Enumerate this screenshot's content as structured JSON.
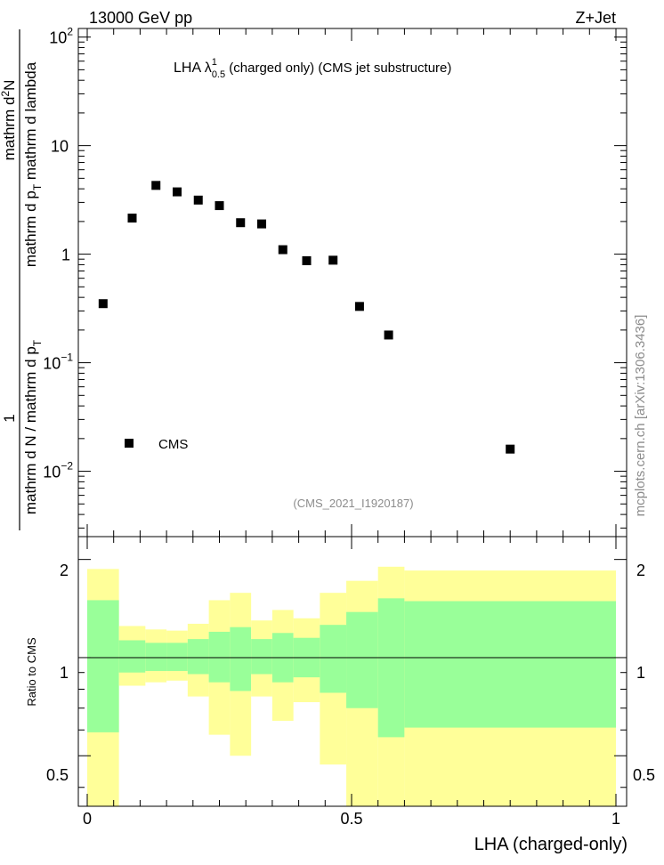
{
  "header": {
    "energy_label": "13000 GeV pp",
    "process_label": "Z+Jet"
  },
  "main_plot": {
    "title_prefix": "LHA λ",
    "title_sup": "1",
    "title_sub": "0.5",
    "title_suffix": " (charged only) (CMS jet substructure)",
    "analysis_id": "(CMS_2021_I1920187)",
    "watermark": "mcplots.cern.ch [arXiv:1306.3436]",
    "y_axis": {
      "numerator": "1",
      "denominator": "mathrm d N / mathrm d p",
      "denominator_sub": "T",
      "outer_numerator": "mathrm d",
      "outer_numerator_sup": "2",
      "outer_numerator_mid": "N",
      "outer_denominator": "mathrm d p",
      "outer_denominator_sub": "T",
      "outer_denominator_end": " mathrm d lambda"
    },
    "y_ticks": [
      {
        "value": 0.01,
        "base": "10",
        "exp": "−2"
      },
      {
        "value": 0.1,
        "base": "10",
        "exp": "−1"
      },
      {
        "value": 1,
        "base": "1",
        "exp": ""
      },
      {
        "value": 10,
        "base": "10",
        "exp": ""
      },
      {
        "value": 100,
        "base": "10",
        "exp": "2"
      }
    ]
  },
  "legend": {
    "entries": [
      {
        "label": "CMS",
        "marker": "square",
        "color": "#000000"
      }
    ]
  },
  "ratio_plot": {
    "ylabel": "Ratio to CMS",
    "y_ticks": [
      "0.5",
      "1",
      "2"
    ],
    "x_ticks": [
      "0",
      "0.5",
      "1"
    ],
    "xlabel": "LHA (charged-only)"
  },
  "colors": {
    "stat_band": "#99ff99",
    "syst_band": "#ffff99",
    "marker": "#000000",
    "watermark": "#8c8c8c"
  },
  "chart_data": {
    "type": "scatter",
    "log_y": true,
    "ylim": [
      0.0025,
      120
    ],
    "xlim": [
      -0.01,
      1.02
    ],
    "series": [
      {
        "name": "CMS",
        "points": [
          {
            "x": 0.03,
            "y": 0.35
          },
          {
            "x": 0.085,
            "y": 2.15
          },
          {
            "x": 0.13,
            "y": 4.3
          },
          {
            "x": 0.17,
            "y": 3.75
          },
          {
            "x": 0.21,
            "y": 3.15
          },
          {
            "x": 0.25,
            "y": 2.8
          },
          {
            "x": 0.29,
            "y": 1.95
          },
          {
            "x": 0.33,
            "y": 1.9
          },
          {
            "x": 0.37,
            "y": 1.1
          },
          {
            "x": 0.415,
            "y": 0.87
          },
          {
            "x": 0.465,
            "y": 0.88
          },
          {
            "x": 0.515,
            "y": 0.33
          },
          {
            "x": 0.57,
            "y": 0.18
          },
          {
            "x": 0.8,
            "y": 0.016
          }
        ]
      }
    ],
    "ratio": {
      "ylim": [
        0.35,
        2.35
      ],
      "log_y": true,
      "reference_line": 1,
      "bins": [
        {
          "x0": 0.0,
          "x1": 0.06,
          "stat_lo": 0.59,
          "stat_hi": 1.5,
          "syst_lo": 0.35,
          "syst_hi": 1.87
        },
        {
          "x0": 0.06,
          "x1": 0.11,
          "stat_lo": 0.9,
          "stat_hi": 1.13,
          "syst_lo": 0.82,
          "syst_hi": 1.25
        },
        {
          "x0": 0.11,
          "x1": 0.15,
          "stat_lo": 0.91,
          "stat_hi": 1.11,
          "syst_lo": 0.84,
          "syst_hi": 1.22
        },
        {
          "x0": 0.15,
          "x1": 0.19,
          "stat_lo": 0.91,
          "stat_hi": 1.11,
          "syst_lo": 0.85,
          "syst_hi": 1.21
        },
        {
          "x0": 0.19,
          "x1": 0.23,
          "stat_lo": 0.89,
          "stat_hi": 1.14,
          "syst_lo": 0.76,
          "syst_hi": 1.27
        },
        {
          "x0": 0.23,
          "x1": 0.27,
          "stat_lo": 0.84,
          "stat_hi": 1.2,
          "syst_lo": 0.58,
          "syst_hi": 1.5
        },
        {
          "x0": 0.27,
          "x1": 0.31,
          "stat_lo": 0.79,
          "stat_hi": 1.24,
          "syst_lo": 0.5,
          "syst_hi": 1.58
        },
        {
          "x0": 0.31,
          "x1": 0.35,
          "stat_lo": 0.89,
          "stat_hi": 1.14,
          "syst_lo": 0.76,
          "syst_hi": 1.3
        },
        {
          "x0": 0.35,
          "x1": 0.39,
          "stat_lo": 0.84,
          "stat_hi": 1.19,
          "syst_lo": 0.64,
          "syst_hi": 1.4
        },
        {
          "x0": 0.39,
          "x1": 0.44,
          "stat_lo": 0.87,
          "stat_hi": 1.15,
          "syst_lo": 0.73,
          "syst_hi": 1.32
        },
        {
          "x0": 0.44,
          "x1": 0.49,
          "stat_lo": 0.78,
          "stat_hi": 1.26,
          "syst_lo": 0.47,
          "syst_hi": 1.58
        },
        {
          "x0": 0.49,
          "x1": 0.55,
          "stat_lo": 0.7,
          "stat_hi": 1.38,
          "syst_lo": 0.35,
          "syst_hi": 1.72
        },
        {
          "x0": 0.55,
          "x1": 0.6,
          "stat_lo": 0.57,
          "stat_hi": 1.52,
          "syst_lo": 0.35,
          "syst_hi": 1.9
        },
        {
          "x0": 0.6,
          "x1": 1.0,
          "stat_lo": 0.61,
          "stat_hi": 1.49,
          "syst_lo": 0.35,
          "syst_hi": 1.85
        }
      ]
    }
  }
}
